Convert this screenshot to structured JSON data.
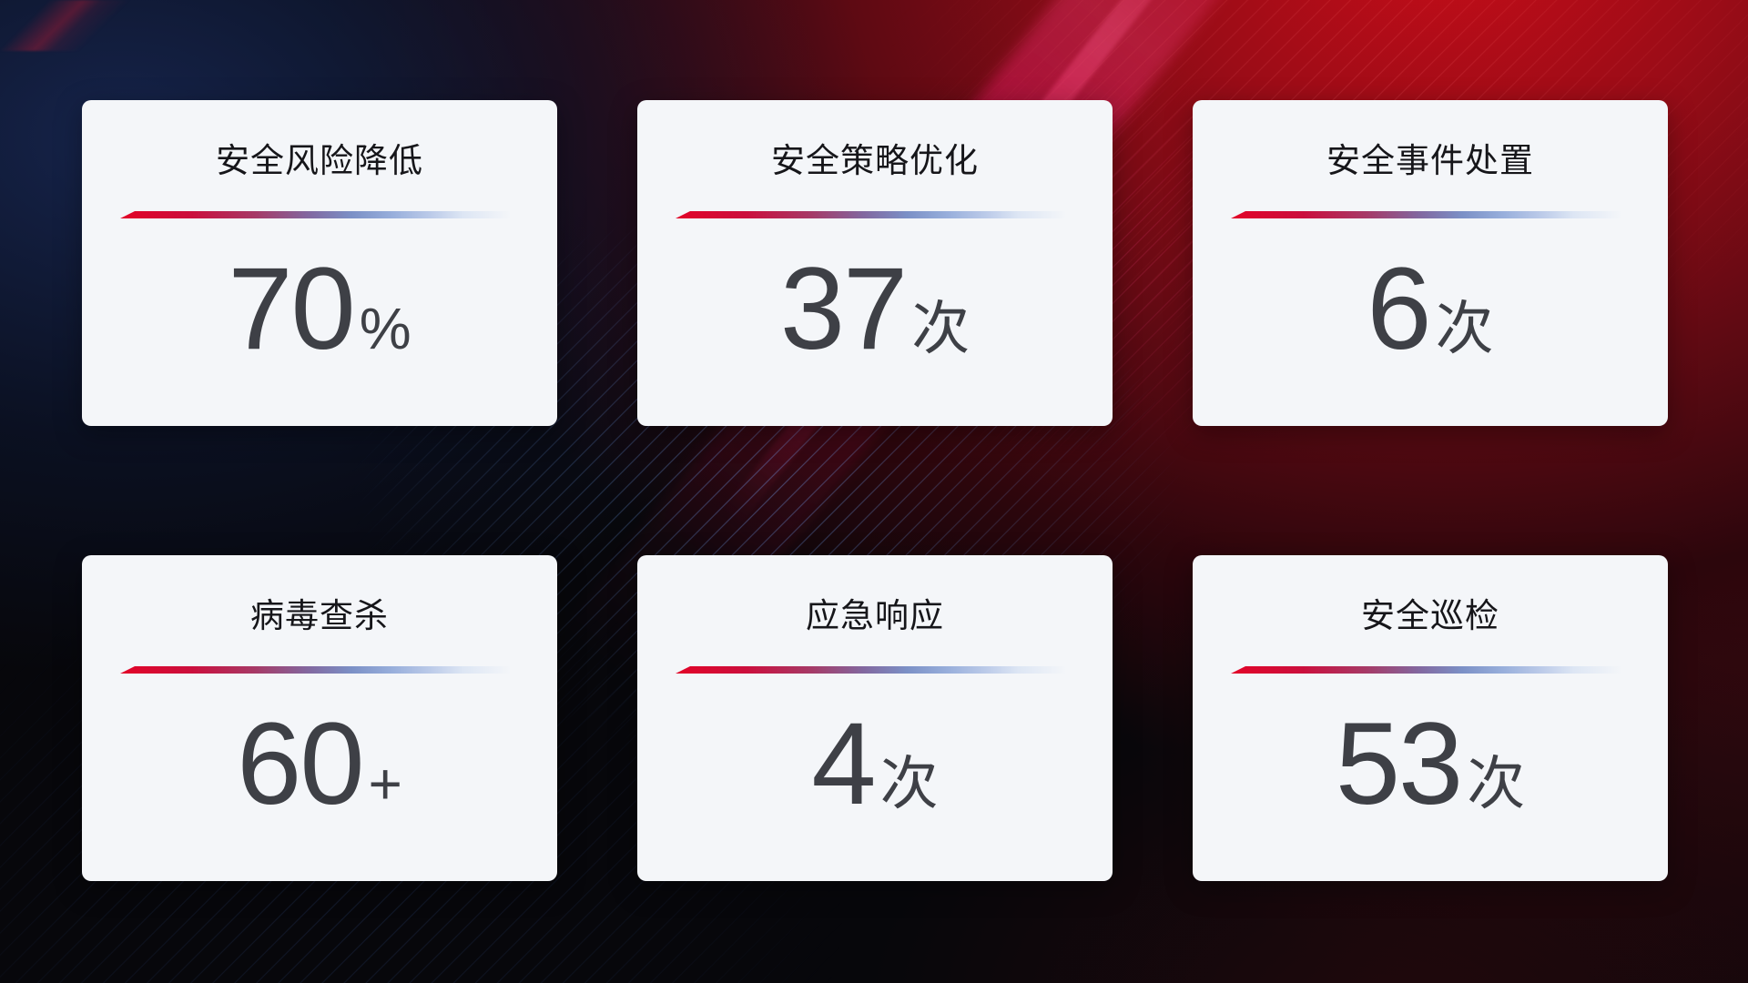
{
  "colors": {
    "background_base": "#07070b",
    "background_navy_glow": "#17264f",
    "background_red_glow": "#c60d18",
    "beam_crimson": "#d01250",
    "card_background": "#f4f6f9",
    "title_text": "#16161a",
    "value_text": "#3e4046",
    "underline_gradient_start": "#e20428",
    "underline_gradient_end": "#dde6f4"
  },
  "cards": [
    {
      "title": "安全风险降低",
      "value": "70",
      "unit": "%"
    },
    {
      "title": "安全策略优化",
      "value": "37",
      "unit": "次"
    },
    {
      "title": "安全事件处置",
      "value": "6",
      "unit": "次"
    },
    {
      "title": "病毒查杀",
      "value": "60",
      "unit": "+"
    },
    {
      "title": "应急响应",
      "value": "4",
      "unit": "次"
    },
    {
      "title": "安全巡检",
      "value": "53",
      "unit": "次"
    }
  ]
}
